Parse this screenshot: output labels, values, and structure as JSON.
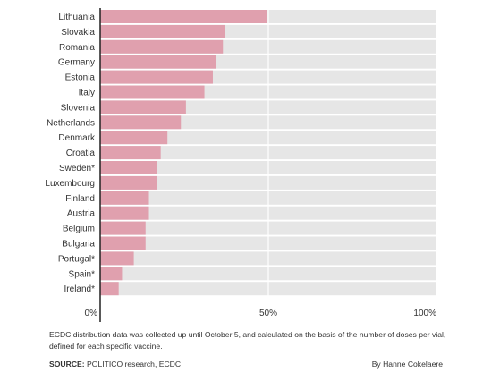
{
  "chart_data": {
    "type": "bar",
    "orientation": "horizontal",
    "categories": [
      "Lithuania",
      "Slovakia",
      "Romania",
      "Germany",
      "Estonia",
      "Italy",
      "Slovenia",
      "Netherlands",
      "Denmark",
      "Croatia",
      "Sweden*",
      "Luxembourg",
      "Finland",
      "Austria",
      "Belgium",
      "Bulgaria",
      "Portugal*",
      "Spain*",
      "Ireland*"
    ],
    "values": [
      49.5,
      37,
      36.5,
      34.5,
      33.5,
      31,
      25.5,
      24,
      20,
      18,
      17,
      17,
      14.5,
      14.5,
      13.5,
      13.5,
      10,
      6.5,
      5.5
    ],
    "xlim": [
      0,
      100
    ],
    "x_ticks": [
      0,
      50,
      100
    ],
    "x_tick_labels": [
      "0%",
      "50%",
      "100%"
    ],
    "bar_color": "#e0a0ae",
    "track_color": "#e6e6e6",
    "axis_color": "#222222",
    "grid": true
  },
  "note": "ECDC distribution data was collected up until October 5, and calculated on the basis of the number of doses per vial, defined for each specific vaccine.",
  "source": {
    "key": "SOURCE:",
    "text": " POLITICO research, ECDC"
  },
  "byline": "By Hanne Cokelaere"
}
